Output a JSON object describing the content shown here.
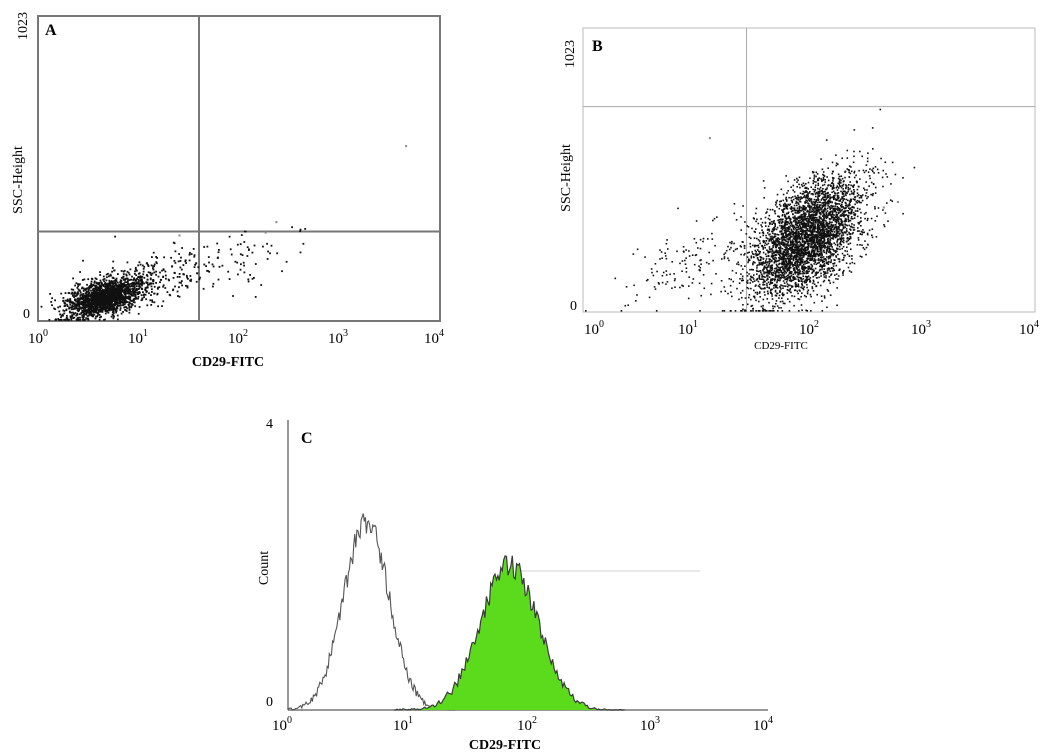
{
  "chart_data": [
    {
      "panel": "A",
      "type": "scatter",
      "xlabel": "CD29-FITC",
      "ylabel": "SSC-Height",
      "xscale": "log",
      "xlim": [
        1,
        10000
      ],
      "ylim": [
        0,
        1023
      ],
      "x_ticks": [
        {
          "base": "10",
          "exp": "0"
        },
        {
          "base": "10",
          "exp": "1"
        },
        {
          "base": "10",
          "exp": "2"
        },
        {
          "base": "10",
          "exp": "3"
        },
        {
          "base": "10",
          "exp": "4"
        }
      ],
      "y_max_label": "1023",
      "y_min_label": "0",
      "quadrant_x": 40,
      "quadrant_y": 300,
      "populations": [
        {
          "center": [
            4.5,
            80
          ],
          "spread": [
            0.2,
            35
          ],
          "count": 1800
        },
        {
          "center": [
            15,
            150
          ],
          "spread": [
            0.35,
            60
          ],
          "count": 180
        },
        {
          "center": [
            90,
            200
          ],
          "spread": [
            0.4,
            60
          ],
          "count": 80
        }
      ],
      "outliers": [
        [
          4500,
          590
        ],
        [
          180,
          300
        ],
        [
          230,
          335
        ],
        [
          25,
          290
        ]
      ]
    },
    {
      "panel": "B",
      "type": "scatter",
      "xlabel": "CD29-FITC",
      "ylabel": "SSC-Height",
      "xscale": "log",
      "xlim": [
        1,
        10000
      ],
      "ylim": [
        0,
        1023
      ],
      "x_ticks": [
        {
          "base": "10",
          "exp": "0"
        },
        {
          "base": "10",
          "exp": "1"
        },
        {
          "base": "10",
          "exp": "2"
        },
        {
          "base": "10",
          "exp": "3"
        },
        {
          "base": "10",
          "exp": "4"
        }
      ],
      "y_max_label": "1023",
      "y_min_label": "0",
      "quadrant_x": 28,
      "quadrant_y": 740,
      "populations": [
        {
          "center": [
            95,
            270
          ],
          "spread": [
            0.25,
            110
          ],
          "count": 3800
        },
        {
          "center": [
            9,
            180
          ],
          "spread": [
            0.3,
            90
          ],
          "count": 140
        }
      ],
      "outliers": [
        [
          600,
          400
        ],
        [
          450,
          380
        ],
        [
          13,
          630
        ]
      ]
    },
    {
      "panel": "C",
      "type": "area",
      "xlabel": "CD29-FITC",
      "ylabel": "Count",
      "xscale": "log",
      "xlim": [
        1,
        10000
      ],
      "ylim": [
        0,
        4
      ],
      "x_ticks": [
        {
          "base": "10",
          "exp": "0"
        },
        {
          "base": "10",
          "exp": "1"
        },
        {
          "base": "10",
          "exp": "2"
        },
        {
          "base": "10",
          "exp": "3"
        },
        {
          "base": "10",
          "exp": "4"
        }
      ],
      "y_max_label": "4",
      "y_min_label": "0",
      "series": [
        {
          "fill": "none",
          "color": "#555555",
          "peak_x": 4.5,
          "peak_y": 2.6,
          "log_sd": 0.19
        },
        {
          "fill": "#5cdb1c",
          "color": "#3a3a3a",
          "peak_x": 70,
          "peak_y": 2.0,
          "log_sd": 0.24
        }
      ]
    }
  ]
}
